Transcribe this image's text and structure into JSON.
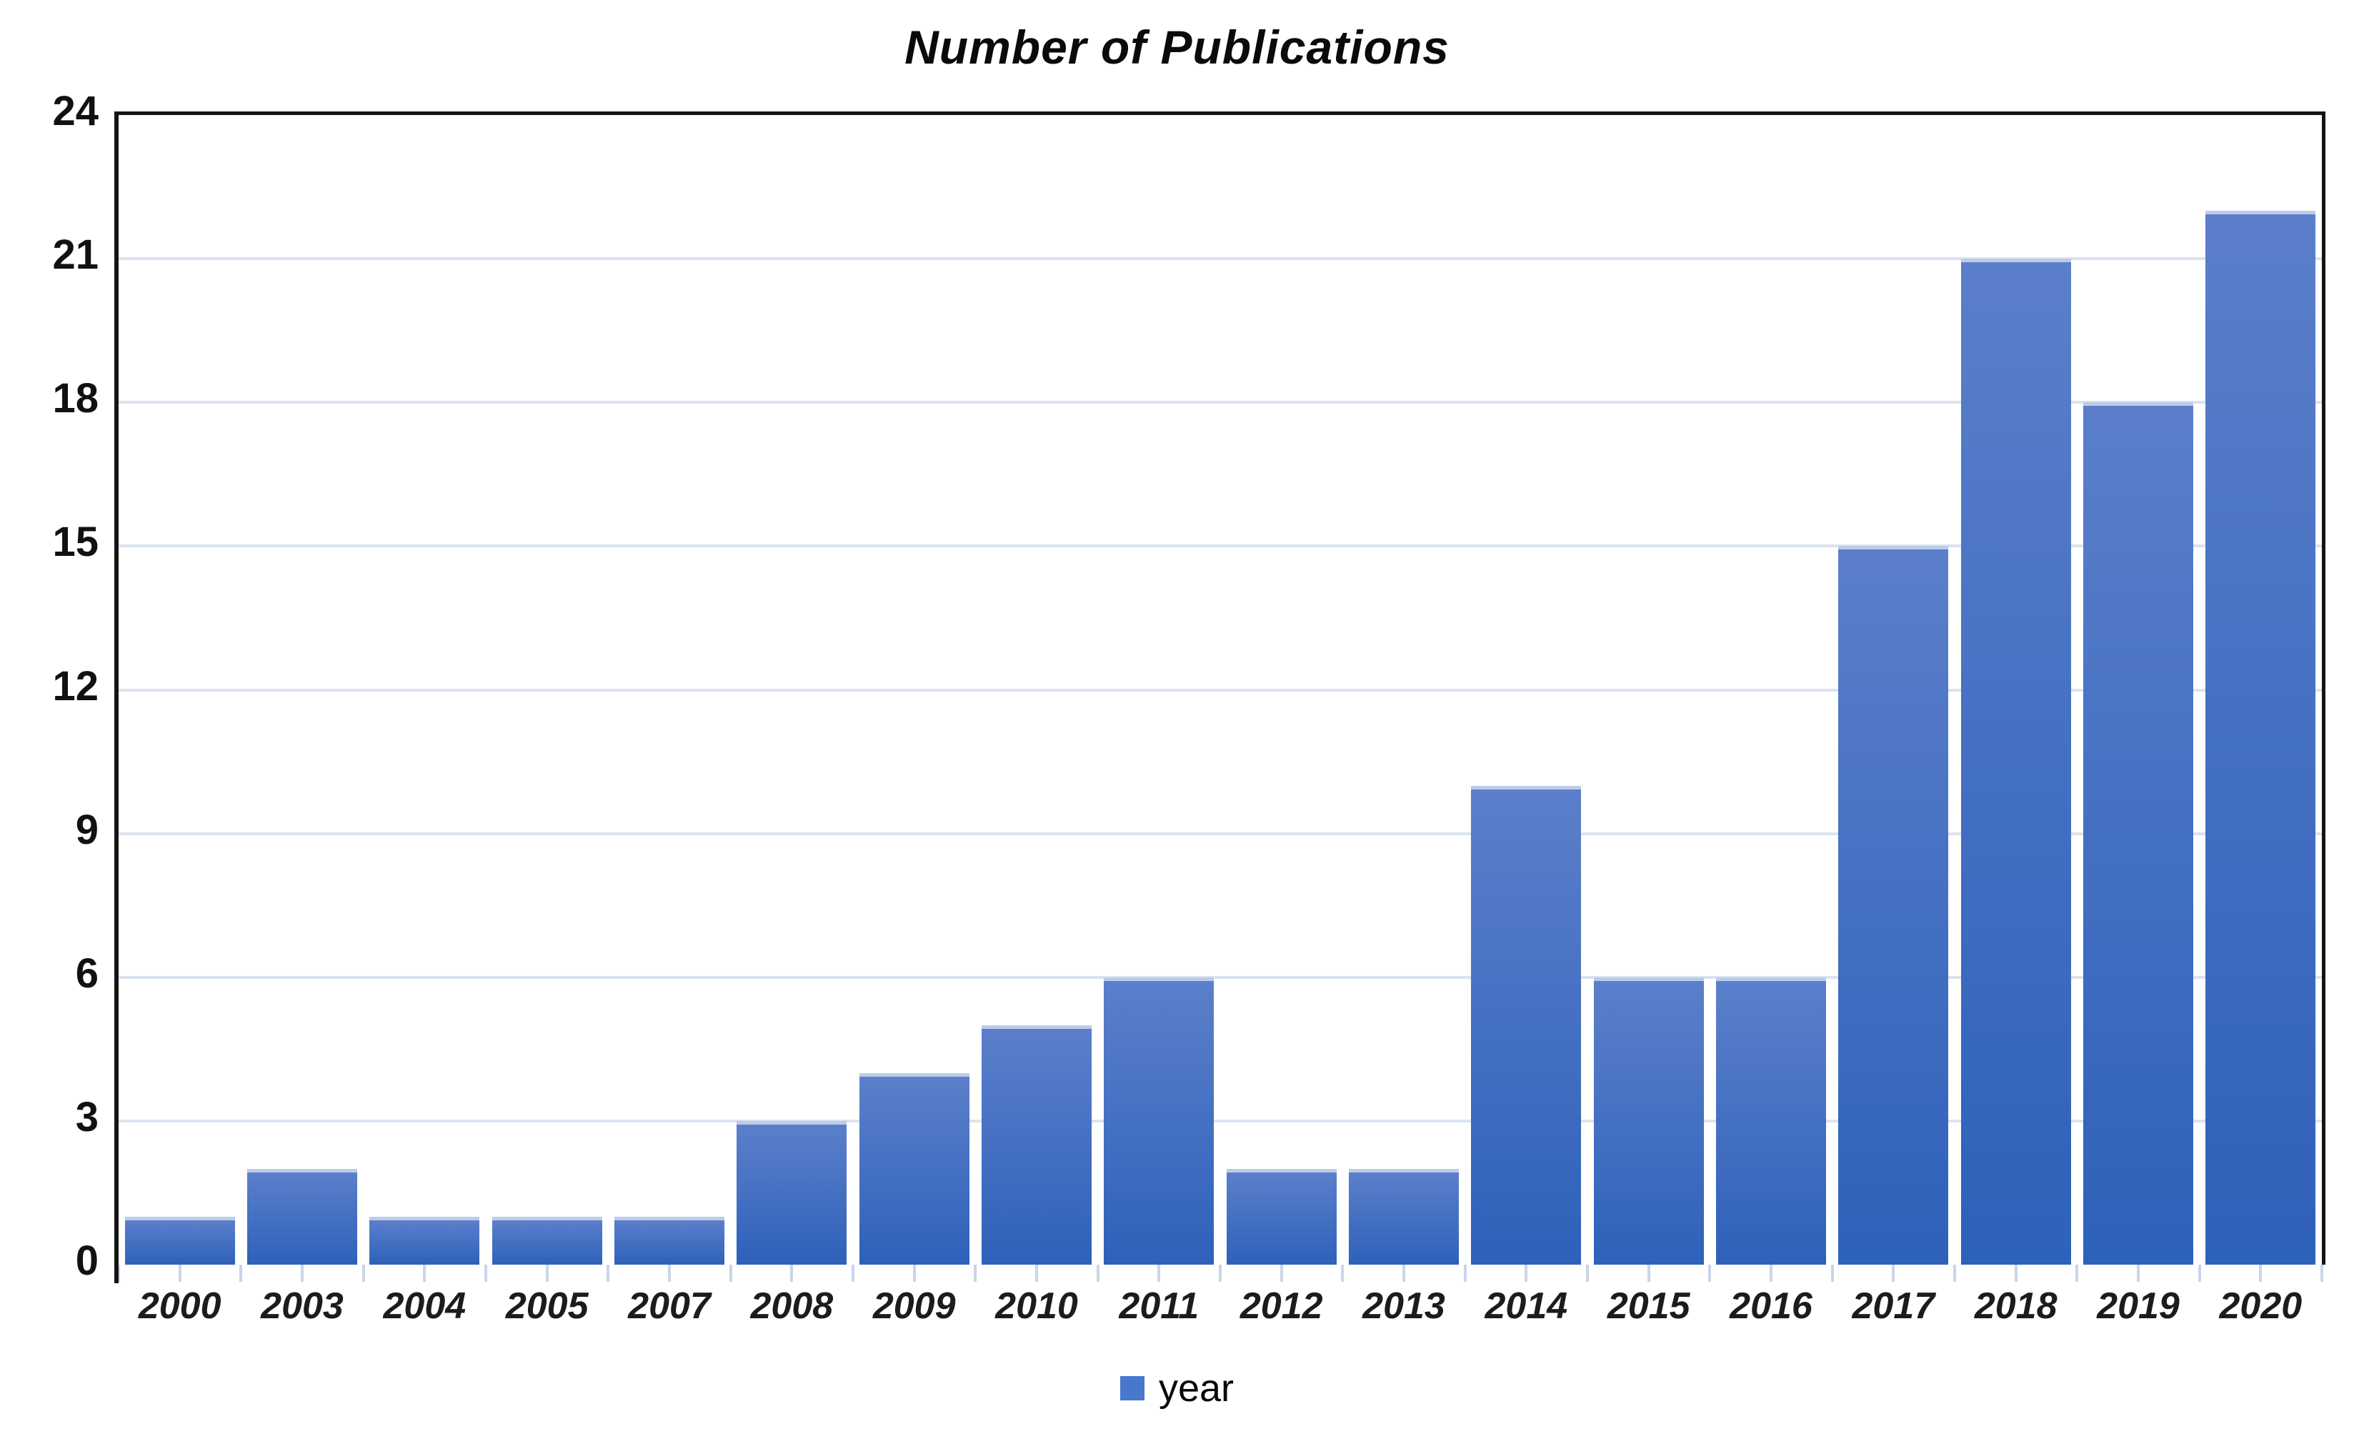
{
  "title": "Number of Publications",
  "legend": {
    "label": "year",
    "marker_color": "#4678cb"
  },
  "colors": {
    "bar_top": "#5b7fca",
    "bar_bottom": "#2e61ba",
    "bar_cap": "#bccbe9",
    "gridline": "#dbe3f0",
    "axis_border": "#141414",
    "tick": "#c9d5ea",
    "text": "#111111"
  },
  "chart_data": {
    "type": "bar",
    "title": "Number of Publications",
    "categories": [
      "2000",
      "2003",
      "2004",
      "2005",
      "2007",
      "2008",
      "2009",
      "2010",
      "2011",
      "2012",
      "2013",
      "2014",
      "2015",
      "2016",
      "2017",
      "2018",
      "2019",
      "2020"
    ],
    "values": [
      1,
      2,
      1,
      1,
      1,
      3,
      4,
      5,
      6,
      2,
      2,
      10,
      6,
      6,
      15,
      21,
      18,
      22
    ],
    "series": [
      {
        "name": "year",
        "values": [
          1,
          2,
          1,
          1,
          1,
          3,
          4,
          5,
          6,
          2,
          2,
          10,
          6,
          6,
          15,
          21,
          18,
          22
        ]
      }
    ],
    "xlabel": "",
    "ylabel": "",
    "ylim": [
      0,
      24
    ],
    "yticks": [
      0,
      3,
      6,
      9,
      12,
      15,
      18,
      21,
      24
    ],
    "grid": "horizontal-only",
    "legend_position": "bottom-center"
  }
}
